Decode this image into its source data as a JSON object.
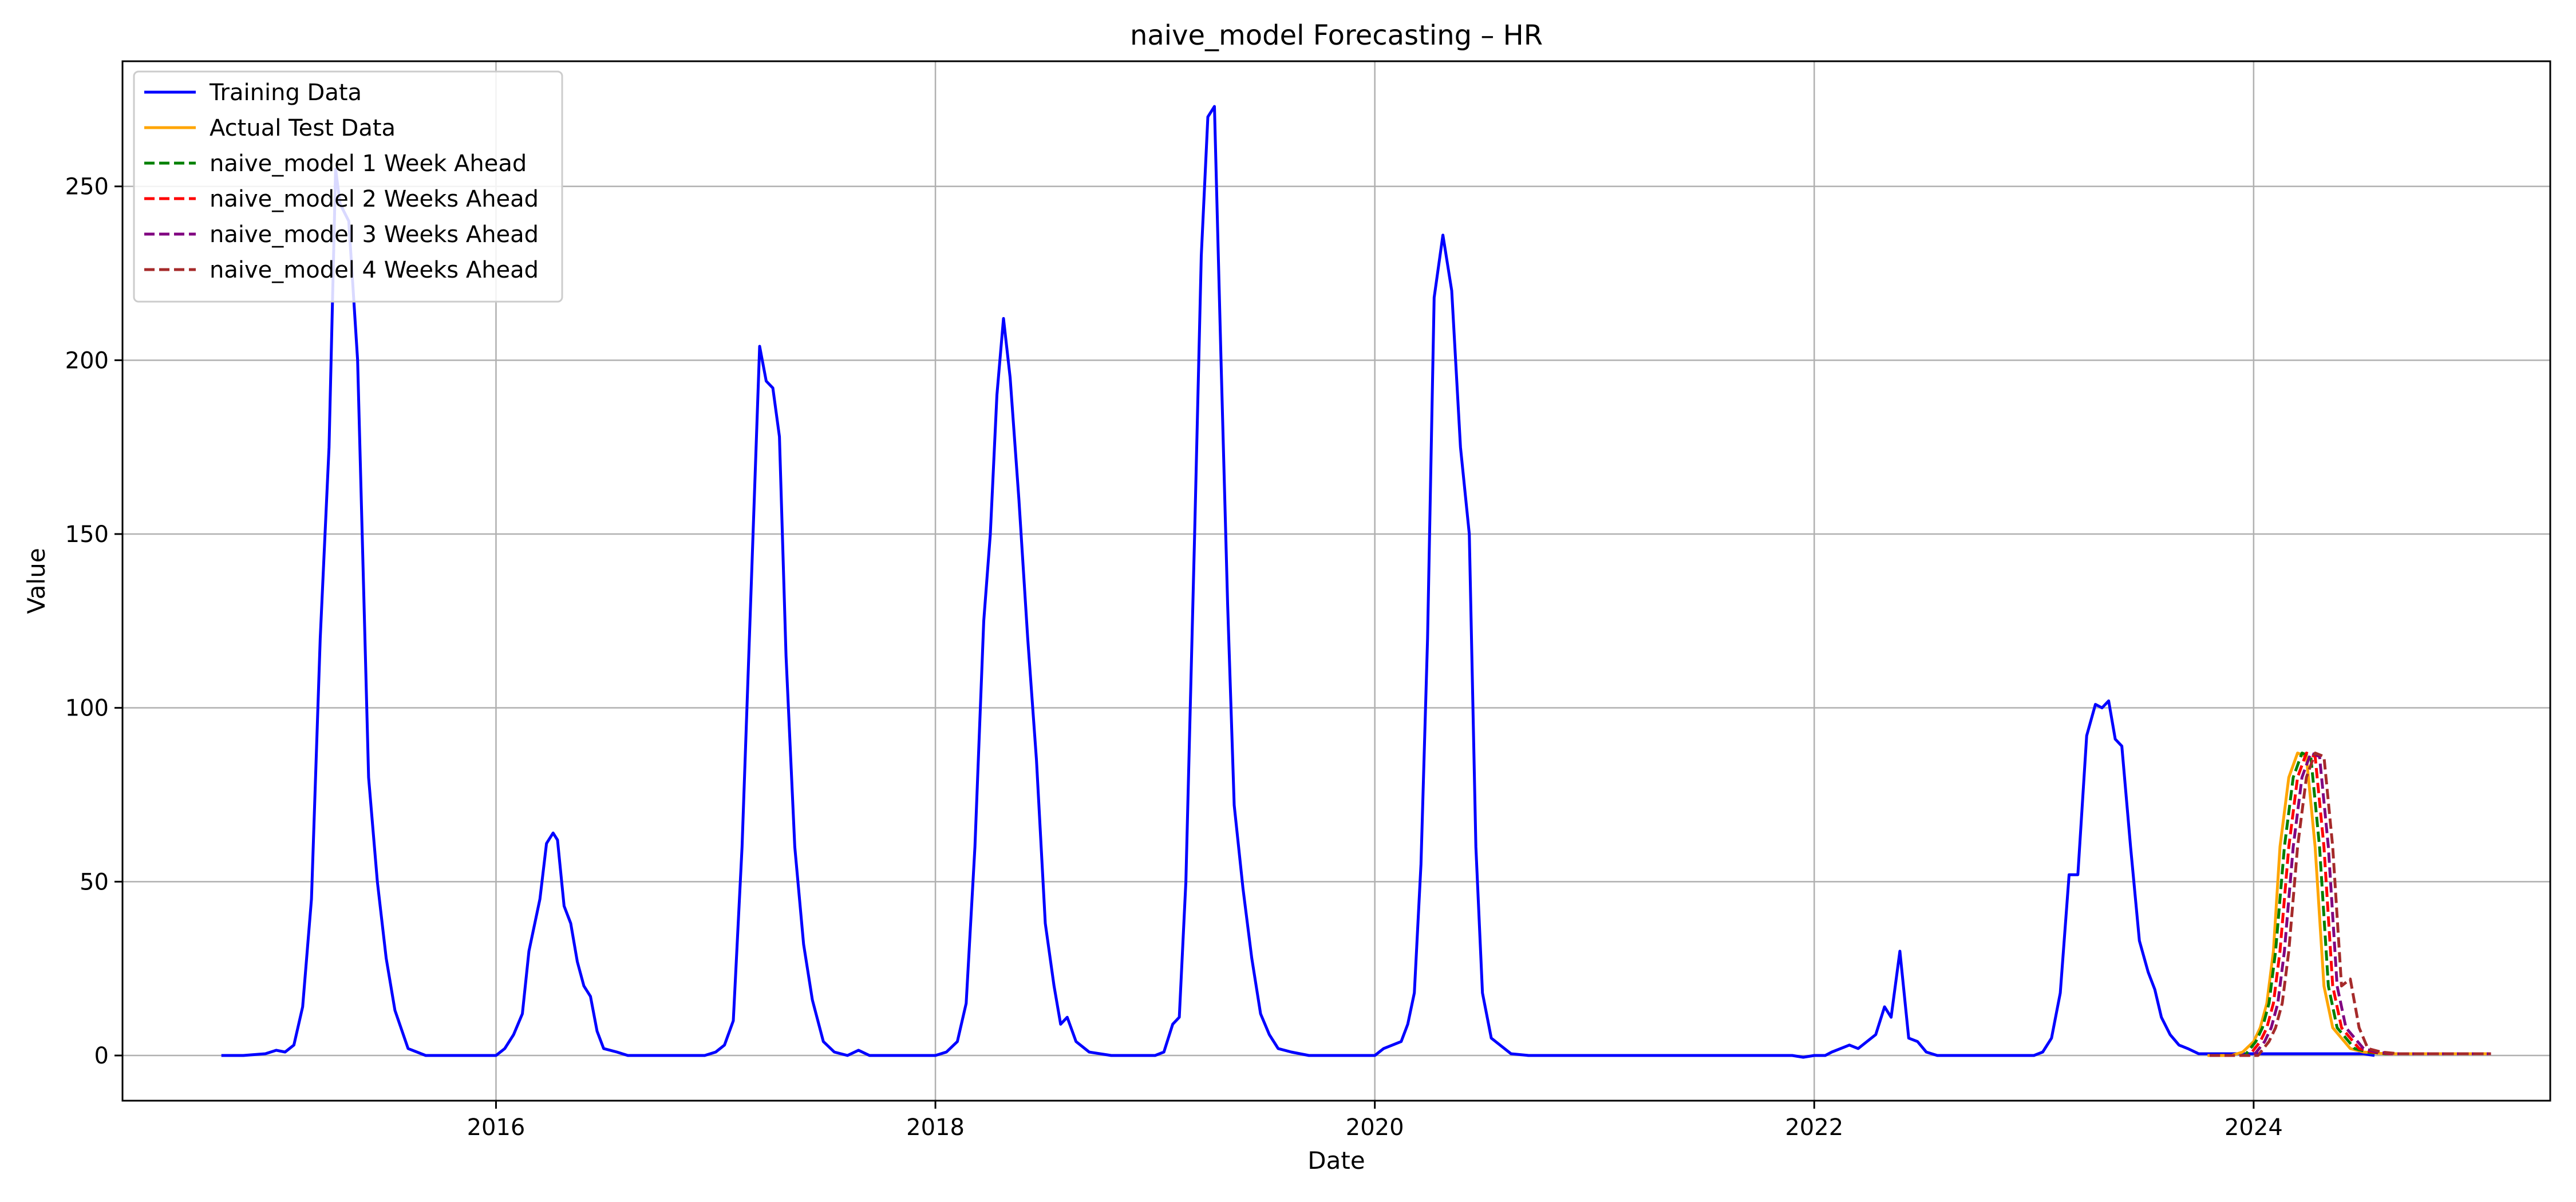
{
  "chart_data": {
    "type": "line",
    "title": "naive_model Forecasting – HR",
    "xlabel": "Date",
    "ylabel": "Value",
    "xlim": [
      2014.3,
      2025.35
    ],
    "ylim": [
      -13,
      286
    ],
    "x_ticks": [
      2016,
      2018,
      2020,
      2022,
      2024
    ],
    "y_ticks": [
      0,
      50,
      100,
      150,
      200,
      250
    ],
    "grid": true,
    "legend_position": "top-left",
    "series": [
      {
        "name": "Training Data",
        "color": "#0000ff",
        "dash": "solid",
        "points": [
          [
            2014.75,
            0
          ],
          [
            2014.85,
            0
          ],
          [
            2014.95,
            0.5
          ],
          [
            2015.0,
            1.5
          ],
          [
            2015.04,
            1
          ],
          [
            2015.08,
            3
          ],
          [
            2015.12,
            14
          ],
          [
            2015.16,
            45
          ],
          [
            2015.2,
            120
          ],
          [
            2015.24,
            175
          ],
          [
            2015.27,
            255
          ],
          [
            2015.29,
            245
          ],
          [
            2015.33,
            240
          ],
          [
            2015.37,
            200
          ],
          [
            2015.42,
            80
          ],
          [
            2015.46,
            50
          ],
          [
            2015.5,
            28
          ],
          [
            2015.54,
            13
          ],
          [
            2015.6,
            2
          ],
          [
            2015.68,
            0
          ],
          [
            2015.8,
            0
          ],
          [
            2015.95,
            0
          ],
          [
            2016.0,
            0
          ],
          [
            2016.04,
            2
          ],
          [
            2016.08,
            6
          ],
          [
            2016.12,
            12
          ],
          [
            2016.15,
            30
          ],
          [
            2016.2,
            45
          ],
          [
            2016.23,
            61
          ],
          [
            2016.26,
            64
          ],
          [
            2016.28,
            62
          ],
          [
            2016.31,
            43
          ],
          [
            2016.34,
            38
          ],
          [
            2016.37,
            27
          ],
          [
            2016.4,
            20
          ],
          [
            2016.43,
            17
          ],
          [
            2016.46,
            7
          ],
          [
            2016.49,
            2
          ],
          [
            2016.55,
            1
          ],
          [
            2016.6,
            0
          ],
          [
            2016.8,
            0
          ],
          [
            2016.95,
            0
          ],
          [
            2017.0,
            1
          ],
          [
            2017.04,
            3
          ],
          [
            2017.08,
            10
          ],
          [
            2017.12,
            60
          ],
          [
            2017.17,
            150
          ],
          [
            2017.2,
            204
          ],
          [
            2017.23,
            194
          ],
          [
            2017.26,
            192
          ],
          [
            2017.29,
            178
          ],
          [
            2017.32,
            115
          ],
          [
            2017.36,
            60
          ],
          [
            2017.4,
            32
          ],
          [
            2017.44,
            16
          ],
          [
            2017.49,
            4
          ],
          [
            2017.54,
            1
          ],
          [
            2017.6,
            0
          ],
          [
            2017.65,
            1.5
          ],
          [
            2017.7,
            0
          ],
          [
            2017.8,
            0
          ],
          [
            2017.95,
            0
          ],
          [
            2018.0,
            0
          ],
          [
            2018.05,
            1
          ],
          [
            2018.1,
            4
          ],
          [
            2018.14,
            15
          ],
          [
            2018.18,
            60
          ],
          [
            2018.22,
            125
          ],
          [
            2018.25,
            150
          ],
          [
            2018.28,
            190
          ],
          [
            2018.31,
            212
          ],
          [
            2018.34,
            195
          ],
          [
            2018.38,
            160
          ],
          [
            2018.42,
            120
          ],
          [
            2018.46,
            85
          ],
          [
            2018.5,
            38
          ],
          [
            2018.54,
            20
          ],
          [
            2018.57,
            9
          ],
          [
            2018.6,
            11
          ],
          [
            2018.64,
            4
          ],
          [
            2018.7,
            1
          ],
          [
            2018.8,
            0
          ],
          [
            2018.95,
            0
          ],
          [
            2019.0,
            0
          ],
          [
            2019.04,
            1
          ],
          [
            2019.08,
            9
          ],
          [
            2019.11,
            11
          ],
          [
            2019.14,
            50
          ],
          [
            2019.18,
            150
          ],
          [
            2019.21,
            230
          ],
          [
            2019.24,
            270
          ],
          [
            2019.27,
            273
          ],
          [
            2019.3,
            200
          ],
          [
            2019.33,
            130
          ],
          [
            2019.36,
            72
          ],
          [
            2019.4,
            48
          ],
          [
            2019.44,
            28
          ],
          [
            2019.48,
            12
          ],
          [
            2019.52,
            6
          ],
          [
            2019.56,
            2
          ],
          [
            2019.62,
            1
          ],
          [
            2019.7,
            0
          ],
          [
            2019.85,
            0
          ],
          [
            2019.95,
            0
          ],
          [
            2020.0,
            0
          ],
          [
            2020.04,
            2
          ],
          [
            2020.08,
            3
          ],
          [
            2020.12,
            4
          ],
          [
            2020.15,
            9
          ],
          [
            2020.18,
            18
          ],
          [
            2020.21,
            55
          ],
          [
            2020.24,
            120
          ],
          [
            2020.27,
            218
          ],
          [
            2020.31,
            236
          ],
          [
            2020.35,
            220
          ],
          [
            2020.39,
            175
          ],
          [
            2020.43,
            150
          ],
          [
            2020.46,
            60
          ],
          [
            2020.49,
            18
          ],
          [
            2020.53,
            5
          ],
          [
            2020.57,
            3
          ],
          [
            2020.62,
            0.5
          ],
          [
            2020.7,
            0
          ],
          [
            2020.85,
            0
          ],
          [
            2021.0,
            0
          ],
          [
            2021.3,
            0
          ],
          [
            2021.6,
            0
          ],
          [
            2021.85,
            0
          ],
          [
            2021.9,
            0
          ],
          [
            2021.95,
            -0.5
          ],
          [
            2022.0,
            0
          ],
          [
            2022.05,
            0
          ],
          [
            2022.08,
            1
          ],
          [
            2022.12,
            2
          ],
          [
            2022.16,
            3
          ],
          [
            2022.2,
            2
          ],
          [
            2022.24,
            4
          ],
          [
            2022.28,
            6
          ],
          [
            2022.32,
            14
          ],
          [
            2022.35,
            11
          ],
          [
            2022.39,
            30
          ],
          [
            2022.43,
            5
          ],
          [
            2022.47,
            4
          ],
          [
            2022.51,
            1
          ],
          [
            2022.56,
            0
          ],
          [
            2022.65,
            0
          ],
          [
            2022.8,
            0
          ],
          [
            2022.95,
            0
          ],
          [
            2023.0,
            0
          ],
          [
            2023.04,
            1
          ],
          [
            2023.08,
            5
          ],
          [
            2023.12,
            18
          ],
          [
            2023.16,
            52
          ],
          [
            2023.2,
            52
          ],
          [
            2023.24,
            92
          ],
          [
            2023.28,
            101
          ],
          [
            2023.31,
            100
          ],
          [
            2023.34,
            102
          ],
          [
            2023.37,
            91
          ],
          [
            2023.4,
            89
          ],
          [
            2023.44,
            60
          ],
          [
            2023.48,
            33
          ],
          [
            2023.52,
            24
          ],
          [
            2023.55,
            19
          ],
          [
            2023.58,
            11
          ],
          [
            2023.62,
            6
          ],
          [
            2023.66,
            3
          ],
          [
            2023.7,
            2
          ],
          [
            2023.75,
            0.5
          ],
          [
            2023.82,
            0.5
          ],
          [
            2023.88,
            0.5
          ],
          [
            2023.93,
            0.5
          ],
          [
            2024.0,
            0.5
          ],
          [
            2024.1,
            0.5
          ],
          [
            2024.2,
            0.5
          ],
          [
            2024.3,
            0.5
          ],
          [
            2024.38,
            0.5
          ],
          [
            2024.45,
            0.5
          ],
          [
            2024.5,
            0.5
          ],
          [
            2024.55,
            0
          ]
        ]
      },
      {
        "name": "Actual Test Data",
        "color": "#ffa500",
        "dash": "solid",
        "points": [
          [
            2023.79,
            0
          ],
          [
            2023.85,
            0
          ],
          [
            2023.9,
            0
          ],
          [
            2023.95,
            1
          ],
          [
            2024.0,
            4
          ],
          [
            2024.03,
            8
          ],
          [
            2024.06,
            15
          ],
          [
            2024.09,
            30
          ],
          [
            2024.12,
            60
          ],
          [
            2024.16,
            80
          ],
          [
            2024.2,
            87
          ],
          [
            2024.24,
            86
          ],
          [
            2024.28,
            60
          ],
          [
            2024.32,
            20
          ],
          [
            2024.36,
            8
          ],
          [
            2024.4,
            5
          ],
          [
            2024.44,
            2
          ],
          [
            2024.5,
            1
          ],
          [
            2024.6,
            0.5
          ],
          [
            2024.7,
            0.5
          ],
          [
            2024.8,
            0.5
          ],
          [
            2024.9,
            0.5
          ],
          [
            2025.0,
            0.5
          ],
          [
            2025.07,
            0.5
          ]
        ]
      },
      {
        "name": "naive_model 1 Week Ahead",
        "color": "#008000",
        "dash": "dashed",
        "points": [
          [
            2023.8,
            0
          ],
          [
            2023.9,
            0
          ],
          [
            2023.96,
            0
          ],
          [
            2024.01,
            4
          ],
          [
            2024.04,
            8
          ],
          [
            2024.07,
            15
          ],
          [
            2024.1,
            30
          ],
          [
            2024.14,
            60
          ],
          [
            2024.18,
            80
          ],
          [
            2024.22,
            87
          ],
          [
            2024.26,
            86
          ],
          [
            2024.3,
            60
          ],
          [
            2024.34,
            20
          ],
          [
            2024.38,
            8
          ],
          [
            2024.42,
            5
          ],
          [
            2024.46,
            2
          ],
          [
            2024.52,
            1
          ],
          [
            2024.6,
            0.5
          ],
          [
            2024.8,
            0.5
          ],
          [
            2025.0,
            0.5
          ],
          [
            2025.08,
            0.5
          ]
        ]
      },
      {
        "name": "naive_model 2 Weeks Ahead",
        "color": "#ff0000",
        "dash": "dashed",
        "points": [
          [
            2023.8,
            0
          ],
          [
            2023.9,
            0
          ],
          [
            2023.98,
            0
          ],
          [
            2024.03,
            4
          ],
          [
            2024.06,
            8
          ],
          [
            2024.09,
            15
          ],
          [
            2024.12,
            30
          ],
          [
            2024.16,
            60
          ],
          [
            2024.2,
            80
          ],
          [
            2024.24,
            87
          ],
          [
            2024.28,
            86
          ],
          [
            2024.32,
            60
          ],
          [
            2024.36,
            20
          ],
          [
            2024.4,
            8
          ],
          [
            2024.44,
            5
          ],
          [
            2024.48,
            2
          ],
          [
            2024.54,
            1
          ],
          [
            2024.62,
            0.5
          ],
          [
            2024.8,
            0.5
          ],
          [
            2025.0,
            0.5
          ],
          [
            2025.08,
            0.5
          ]
        ]
      },
      {
        "name": "naive_model 3 Weeks Ahead",
        "color": "#800080",
        "dash": "dashed",
        "points": [
          [
            2023.8,
            0
          ],
          [
            2023.9,
            0
          ],
          [
            2024.0,
            0
          ],
          [
            2024.05,
            4
          ],
          [
            2024.08,
            8
          ],
          [
            2024.11,
            15
          ],
          [
            2024.14,
            30
          ],
          [
            2024.18,
            60
          ],
          [
            2024.22,
            80
          ],
          [
            2024.26,
            87
          ],
          [
            2024.3,
            86
          ],
          [
            2024.34,
            60
          ],
          [
            2024.38,
            20
          ],
          [
            2024.42,
            8
          ],
          [
            2024.46,
            5
          ],
          [
            2024.5,
            2
          ],
          [
            2024.56,
            1
          ],
          [
            2024.64,
            0.5
          ],
          [
            2024.8,
            0.5
          ],
          [
            2025.0,
            0.5
          ],
          [
            2025.08,
            0.5
          ]
        ]
      },
      {
        "name": "naive_model 4 Weeks Ahead",
        "color": "#a52a2a",
        "dash": "dashed",
        "points": [
          [
            2023.8,
            0
          ],
          [
            2023.9,
            0
          ],
          [
            2024.02,
            0
          ],
          [
            2024.07,
            4
          ],
          [
            2024.1,
            8
          ],
          [
            2024.13,
            15
          ],
          [
            2024.16,
            30
          ],
          [
            2024.2,
            60
          ],
          [
            2024.24,
            80
          ],
          [
            2024.28,
            87
          ],
          [
            2024.32,
            86
          ],
          [
            2024.36,
            60
          ],
          [
            2024.4,
            20
          ],
          [
            2024.44,
            22
          ],
          [
            2024.48,
            8
          ],
          [
            2024.52,
            2
          ],
          [
            2024.58,
            1
          ],
          [
            2024.66,
            0.5
          ],
          [
            2024.8,
            0.5
          ],
          [
            2025.0,
            0.5
          ],
          [
            2025.08,
            0.5
          ]
        ]
      }
    ]
  }
}
